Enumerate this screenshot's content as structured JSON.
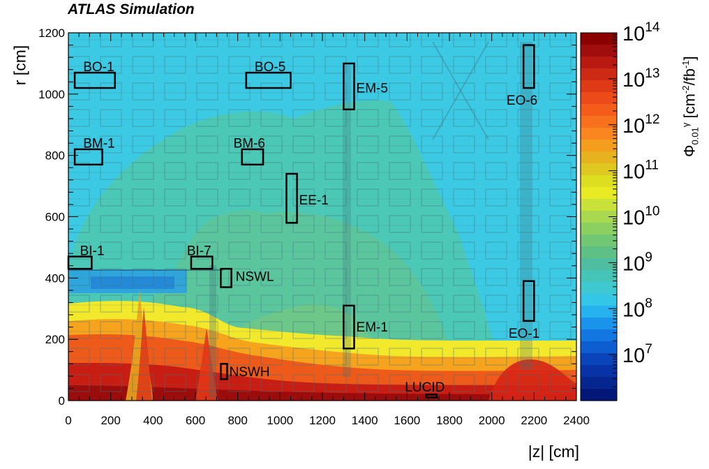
{
  "header": {
    "experiment_label": "ATLAS Simulation"
  },
  "colors": {
    "frame": "#000000",
    "region_fill_cyan": "#3dc9e6",
    "region_fill_teal": "#4fc6b4",
    "region_fill_green": "#6fc785",
    "band_yellow": "#ffff33",
    "band_orange": "#ff9a1a",
    "band_red": "#e8331a",
    "band_dark_red": "#9e0f10"
  },
  "chart_data": {
    "type": "heatmap",
    "title": "ATLAS Simulation",
    "xlabel": "|z| [cm]",
    "ylabel": "r [cm]",
    "zlabel": "Φ",
    "xlim": [
      0,
      2400
    ],
    "ylim": [
      0,
      1200
    ],
    "zlim": [
      1000000.0,
      100000000000000.0
    ],
    "z_log_scale": true,
    "x_ticks": [
      0,
      200,
      400,
      600,
      800,
      1000,
      1200,
      1400,
      1600,
      1800,
      2000,
      2200,
      2400
    ],
    "x_tick_labels": [
      "0",
      "200",
      "400",
      "600",
      "800",
      "1000",
      "1200",
      "1400",
      "1600",
      "1800",
      "2000",
      "2200",
      "2400"
    ],
    "y_ticks": [
      0,
      200,
      400,
      600,
      800,
      1000,
      1200
    ],
    "y_tick_labels": [
      "0",
      "200",
      "400",
      "600",
      "800",
      "1000",
      "1200"
    ],
    "z_tick_labels": [
      {
        "base": "10",
        "exp": "14",
        "value": 100000000000000.0
      },
      {
        "base": "10",
        "exp": "13",
        "value": 10000000000000.0
      },
      {
        "base": "10",
        "exp": "12",
        "value": 1000000000000.0
      },
      {
        "base": "10",
        "exp": "11",
        "value": 100000000000.0
      },
      {
        "base": "10",
        "exp": "10",
        "value": 10000000000.0
      },
      {
        "base": "10",
        "exp": "9",
        "value": 1000000000.0
      },
      {
        "base": "10",
        "exp": "8",
        "value": 100000000.0
      },
      {
        "base": "10",
        "exp": "7",
        "value": 10000000.0
      }
    ],
    "colorbar_colors": [
      "#8b0000",
      "#a00d0d",
      "#b81a12",
      "#cc2a14",
      "#de3a16",
      "#ec4a18",
      "#f45c1a",
      "#f7701c",
      "#f9861e",
      "#f59e1e",
      "#e6b21e",
      "#dfc81f",
      "#dede21",
      "#e8ea24",
      "#c8e23a",
      "#a9d94e",
      "#8cd061",
      "#72c774",
      "#5ec084",
      "#4fbea0",
      "#45c4b8",
      "#3dc9cf",
      "#33c6e6",
      "#25b2ee",
      "#1a94ea",
      "#1277e0",
      "#0d5cd0",
      "#0a44bb",
      "#0833a6",
      "#05258f",
      "#021778"
    ],
    "regions": [
      {
        "label": "BO-1",
        "z": [
          30,
          220
        ],
        "r": [
          1020,
          1070
        ],
        "label_z": 70,
        "label_r": 1075
      },
      {
        "label": "BO-5",
        "z": [
          840,
          1050
        ],
        "r": [
          1020,
          1070
        ],
        "label_z": 880,
        "label_r": 1075
      },
      {
        "label": "EM-5",
        "z": [
          1300,
          1350
        ],
        "r": [
          950,
          1100
        ],
        "label_z": 1360,
        "label_r": 1005
      },
      {
        "label": "EO-6",
        "z": [
          2150,
          2200
        ],
        "r": [
          1020,
          1160
        ],
        "label_z": 2070,
        "label_r": 965
      },
      {
        "label": "BM-1",
        "z": [
          30,
          160
        ],
        "r": [
          770,
          820
        ],
        "label_z": 70,
        "label_r": 825
      },
      {
        "label": "BM-6",
        "z": [
          820,
          920
        ],
        "r": [
          770,
          820
        ],
        "label_z": 780,
        "label_r": 825
      },
      {
        "label": "EE-1",
        "z": [
          1030,
          1080
        ],
        "r": [
          580,
          740
        ],
        "label_z": 1090,
        "label_r": 640
      },
      {
        "label": "BI-1",
        "z": [
          0,
          110
        ],
        "r": [
          430,
          470
        ],
        "label_z": 55,
        "label_r": 475
      },
      {
        "label": "BI-7",
        "z": [
          580,
          680
        ],
        "r": [
          430,
          470
        ],
        "label_z": 560,
        "label_r": 475
      },
      {
        "label": "NSWL",
        "z": [
          720,
          770
        ],
        "r": [
          370,
          430
        ],
        "label_z": 790,
        "label_r": 390
      },
      {
        "label": "EM-1",
        "z": [
          1300,
          1350
        ],
        "r": [
          170,
          310
        ],
        "label_z": 1360,
        "label_r": 225
      },
      {
        "label": "EO-1",
        "z": [
          2150,
          2200
        ],
        "r": [
          260,
          390
        ],
        "label_z": 2080,
        "label_r": 205
      },
      {
        "label": "NSWH",
        "z": [
          720,
          750
        ],
        "r": [
          70,
          120
        ],
        "label_z": 760,
        "label_r": 80
      },
      {
        "label": "LUCID",
        "z": [
          1690,
          1740
        ],
        "r": [
          10,
          20
        ],
        "label_z": 1590,
        "label_r": 30
      }
    ]
  }
}
